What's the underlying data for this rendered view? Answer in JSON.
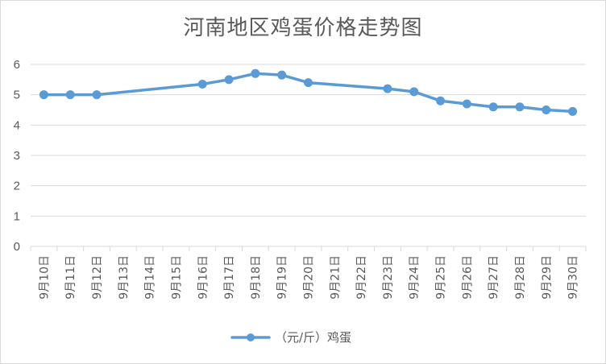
{
  "chart_data": {
    "type": "line",
    "title": "河南地区鸡蛋价格走势图",
    "xlabel": "",
    "ylabel": "",
    "ylim": [
      0,
      6
    ],
    "yticks": [
      "0",
      "1",
      "2",
      "3",
      "4",
      "5",
      "6"
    ],
    "grid": true,
    "legend_position": "bottom",
    "categories": [
      "9月10日",
      "9月11日",
      "9月12日",
      "9月13日",
      "9月14日",
      "9月15日",
      "9月16日",
      "9月17日",
      "9月18日",
      "9月19日",
      "9月20日",
      "9月21日",
      "9月22日",
      "9月23日",
      "9月24日",
      "9月25日",
      "9月26日",
      "9月27日",
      "9月28日",
      "9月29日",
      "9月30日"
    ],
    "series": [
      {
        "name": "（元/斤）鸡蛋",
        "color": "#5B9BD5",
        "values": [
          5.0,
          5.0,
          5.0,
          null,
          null,
          null,
          5.35,
          5.5,
          5.7,
          5.65,
          5.4,
          null,
          null,
          5.2,
          5.1,
          4.8,
          4.7,
          4.6,
          4.6,
          4.5,
          4.45
        ]
      }
    ]
  }
}
